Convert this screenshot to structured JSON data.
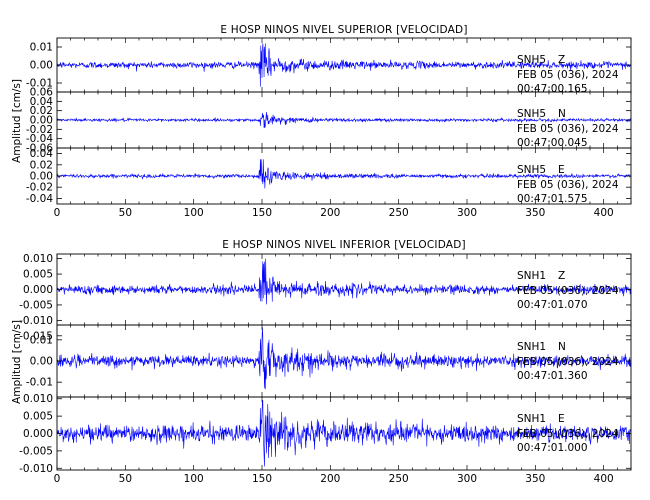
{
  "chart_data": [
    {
      "type": "line",
      "title": "E HOSP NINOS NIVEL SUPERIOR [VELOCIDAD]",
      "ylabel": "Amplitud [cm/s]",
      "xlim": [
        0,
        420
      ],
      "x_ticks": [
        "0",
        "50",
        "100",
        "150",
        "200",
        "250",
        "300",
        "350",
        "400"
      ],
      "event_x": 149,
      "line_color": "#0000ff",
      "panels": [
        {
          "station": "SNH5",
          "component": "Z",
          "date": "FEB 05 (036), 2024",
          "time": "00:47:00.165",
          "ylim": [
            -0.015,
            0.015
          ],
          "y_ticks": [
            "0.01",
            "0.00",
            "-0.01"
          ],
          "y_tick_values": [
            0.01,
            0.0,
            -0.01
          ],
          "noise": 0.0009,
          "peak": 0.012
        },
        {
          "station": "SNH5",
          "component": "N",
          "date": "FEB 05 (036), 2024",
          "time": "00:47:00.045",
          "ylim": [
            -0.06,
            0.06
          ],
          "y_ticks": [
            "0.06",
            "0.04",
            "0.02",
            "0.00",
            "-0.02",
            "-0.04",
            "-0.06"
          ],
          "y_tick_values": [
            0.06,
            0.04,
            0.02,
            0.0,
            -0.02,
            -0.04,
            -0.06
          ],
          "noise": 0.0015,
          "peak": 0.018
        },
        {
          "station": "SNH5",
          "component": "E",
          "date": "FEB 05 (036), 2024",
          "time": "00:47:01.575",
          "ylim": [
            -0.05,
            0.05
          ],
          "y_ticks": [
            "0.04",
            "0.02",
            "0.00",
            "-0.02",
            "-0.04"
          ],
          "y_tick_values": [
            0.04,
            0.02,
            0.0,
            -0.02,
            -0.04
          ],
          "noise": 0.0016,
          "peak": 0.03
        }
      ]
    },
    {
      "type": "line",
      "title": "E HOSP NINOS NIVEL INFERIOR [VELOCIDAD]",
      "ylabel": "Amplitud [cm/s]",
      "xlim": [
        0,
        420
      ],
      "x_ticks": [
        "0",
        "50",
        "100",
        "150",
        "200",
        "250",
        "300",
        "350",
        "400"
      ],
      "event_x": 149,
      "line_color": "#0000ff",
      "panels": [
        {
          "station": "SNH1",
          "component": "Z",
          "date": "FEB 05 (036), 2024",
          "time": "00:47:01.070",
          "ylim": [
            -0.0115,
            0.0115
          ],
          "y_ticks": [
            "0.010",
            "0.005",
            "0.000",
            "-0.005",
            "-0.010",
            "-0.015"
          ],
          "y_tick_values": [
            0.01,
            0.005,
            0.0,
            -0.005,
            -0.01,
            -0.015
          ],
          "noise": 0.0007,
          "peak": 0.0105
        },
        {
          "station": "SNH1",
          "component": "N",
          "date": "FEB 05 (036), 2024",
          "time": "00:47:01.360",
          "ylim": [
            -0.017,
            0.017
          ],
          "y_ticks": [
            "0.01",
            "0.00",
            "-0.01"
          ],
          "y_tick_values": [
            0.01,
            0.0,
            -0.01
          ],
          "noise": 0.0013,
          "peak": 0.016
        },
        {
          "station": "SNH1",
          "component": "E",
          "date": "FEB 05 (036), 2024",
          "time": "00:47:01.000",
          "ylim": [
            -0.0105,
            0.0105
          ],
          "y_ticks": [
            "0.010",
            "0.005",
            "0.000",
            "-0.005",
            "-0.010"
          ],
          "y_tick_values": [
            0.01,
            0.005,
            0.0,
            -0.005,
            -0.01
          ],
          "noise": 0.0012,
          "peak": 0.0095
        }
      ]
    }
  ]
}
